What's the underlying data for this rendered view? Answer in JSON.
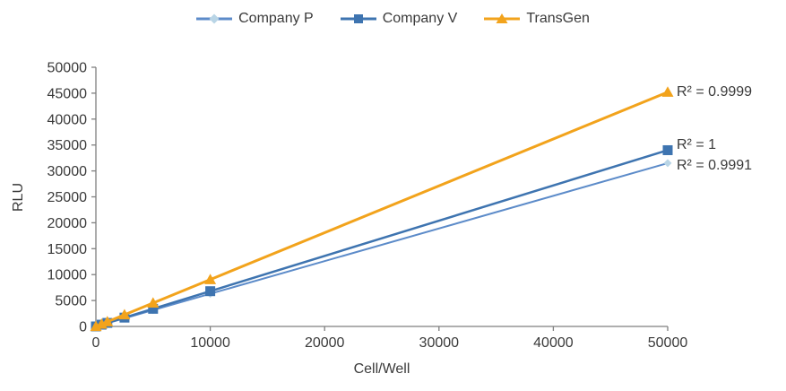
{
  "chart_data": {
    "type": "line",
    "title": "",
    "xlabel": "Cell/Well",
    "ylabel": "RLU",
    "x": [
      0,
      500,
      1000,
      2500,
      5000,
      10000,
      50000
    ],
    "series": [
      {
        "name": "Company P",
        "color": "#5c8bc9",
        "marker": "diamond",
        "marker_color": "#b9d5e6",
        "marker_size": 9,
        "line_width": 2,
        "values": [
          0,
          310,
          630,
          1570,
          3150,
          6300,
          31500
        ],
        "r2_label": "R² = 0.9991",
        "r2_dy": 3
      },
      {
        "name": "Company V",
        "color": "#3e74b0",
        "marker": "square",
        "marker_color": "#3e74b0",
        "marker_size": 11,
        "line_width": 2.5,
        "values": [
          0,
          340,
          680,
          1700,
          3400,
          6800,
          34000
        ],
        "r2_label": "R² = 1",
        "r2_dy": -5
      },
      {
        "name": "TransGen",
        "color": "#f2a31c",
        "marker": "triangle",
        "marker_color": "#f2a31c",
        "marker_size": 13,
        "line_width": 3,
        "values": [
          0,
          450,
          900,
          2250,
          4520,
          9040,
          45200
        ],
        "r2_label": "R² = 0.9999",
        "r2_dy": 0
      }
    ],
    "xlim": [
      0,
      50000
    ],
    "ylim": [
      0,
      50000
    ],
    "x_ticks": [
      0,
      10000,
      20000,
      30000,
      40000,
      50000
    ],
    "y_ticks": [
      0,
      5000,
      10000,
      15000,
      20000,
      25000,
      30000,
      35000,
      40000,
      45000,
      50000
    ],
    "grid": false,
    "legend_position": "top",
    "axis_color": "#7f7f7f",
    "text_color": "#3a3a3a"
  }
}
